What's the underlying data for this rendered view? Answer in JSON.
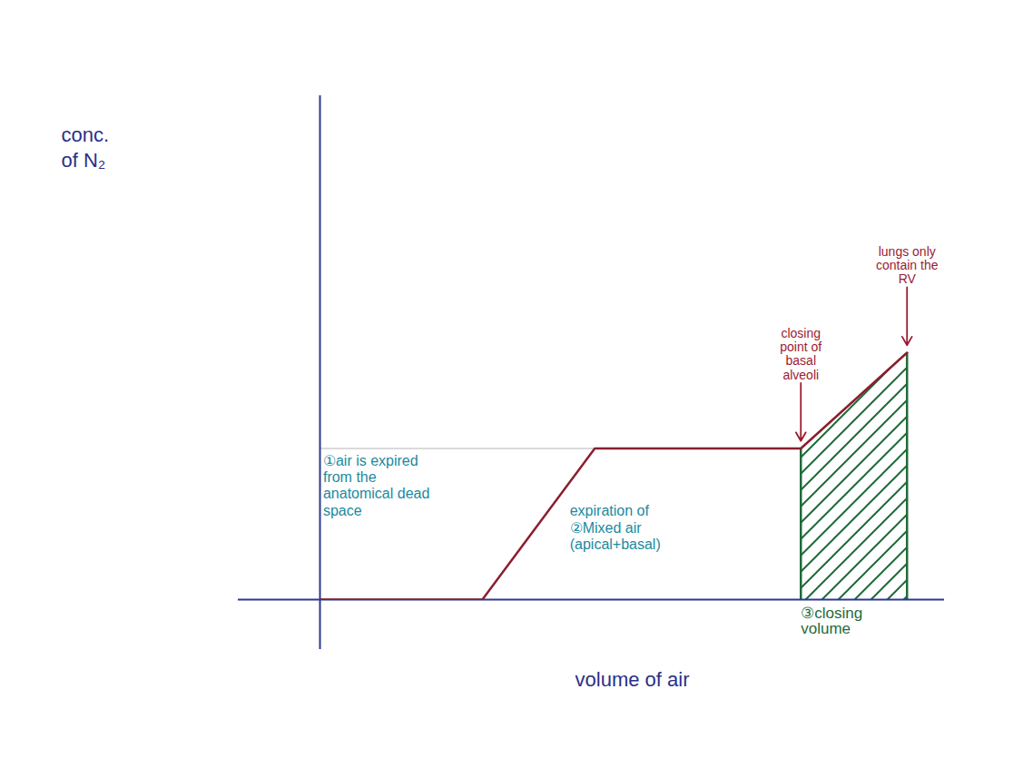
{
  "chart_data": {
    "type": "line",
    "x_label": "volume of air",
    "y_label": "conc. of N₂",
    "x": [
      0,
      26,
      44,
      77,
      94
    ],
    "values": [
      0,
      0,
      30,
      30,
      49
    ],
    "color": "#8b1e2d",
    "xlim": [
      0,
      100
    ],
    "ylim": [
      0,
      100
    ],
    "tick_labels": false,
    "annotations": [
      {
        "text": "①air is expired from the anatomical dead space",
        "x": 0.5,
        "y": 29,
        "color": "#1b8aa0"
      },
      {
        "text": "expiration of ②Mixed air (apical+basal)",
        "x": 40,
        "y": 19,
        "color": "#1b8aa0"
      }
    ],
    "markers": [
      {
        "text": "closing point of basal alveoli",
        "x": 77,
        "y": 30,
        "color": "#9b1b30"
      },
      {
        "text": "lungs only contain the RV",
        "x": 94,
        "y": 49,
        "color": "#9b1b30"
      }
    ],
    "shaded_region": {
      "text": "③closing volume",
      "x1": 77,
      "x2": 94,
      "color": "#1f6b3a"
    }
  }
}
